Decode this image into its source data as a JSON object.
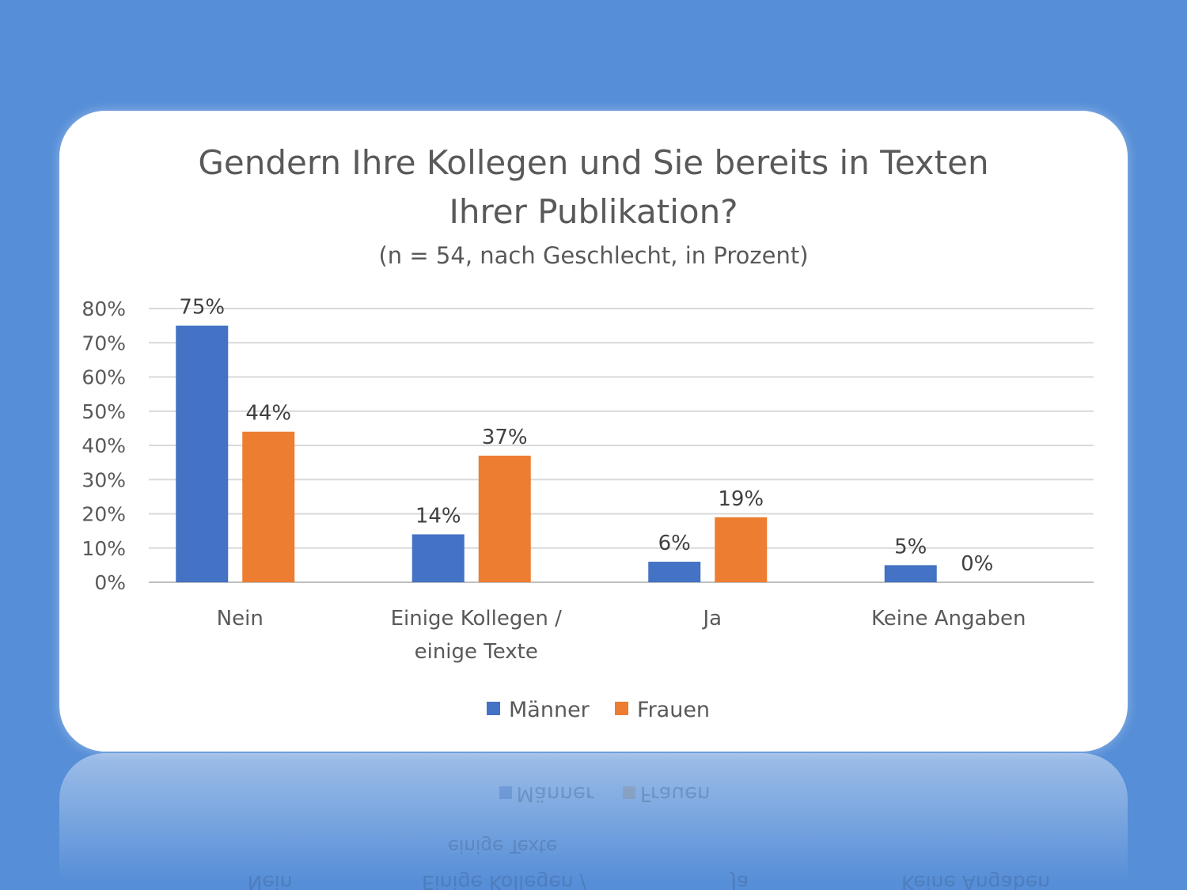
{
  "chart_data": {
    "type": "bar",
    "title_lines": [
      "Gendern Ihre Kollegen und Sie bereits in Texten",
      "Ihrer Publikation?"
    ],
    "subtitle": "(n = 54, nach Geschlecht, in Prozent)",
    "categories": [
      [
        "Nein"
      ],
      [
        "Einige Kollegen /",
        "einige Texte"
      ],
      [
        "Ja"
      ],
      [
        "Keine Angaben"
      ]
    ],
    "series": [
      {
        "name": "Männer",
        "color": "#4472c4",
        "values": [
          75,
          14,
          6,
          5
        ],
        "labels": [
          "75%",
          "14%",
          "6%",
          "5%"
        ]
      },
      {
        "name": "Frauen",
        "color": "#ed7d31",
        "values": [
          44,
          37,
          19,
          0
        ],
        "labels": [
          "44%",
          "37%",
          "19%",
          "0%"
        ]
      }
    ],
    "y_ticks": [
      "0%",
      "10%",
      "20%",
      "30%",
      "40%",
      "50%",
      "60%",
      "70%",
      "80%"
    ],
    "ylim": [
      0,
      80
    ],
    "grid": true,
    "legend": "bottom-center"
  },
  "reflection": {
    "legend": [
      "Männer",
      "Frauen"
    ],
    "categories": [
      "Nein",
      "Einige Kollegen /",
      "Ja",
      "Keine Angaben"
    ],
    "category_line2": "einige Texte"
  }
}
